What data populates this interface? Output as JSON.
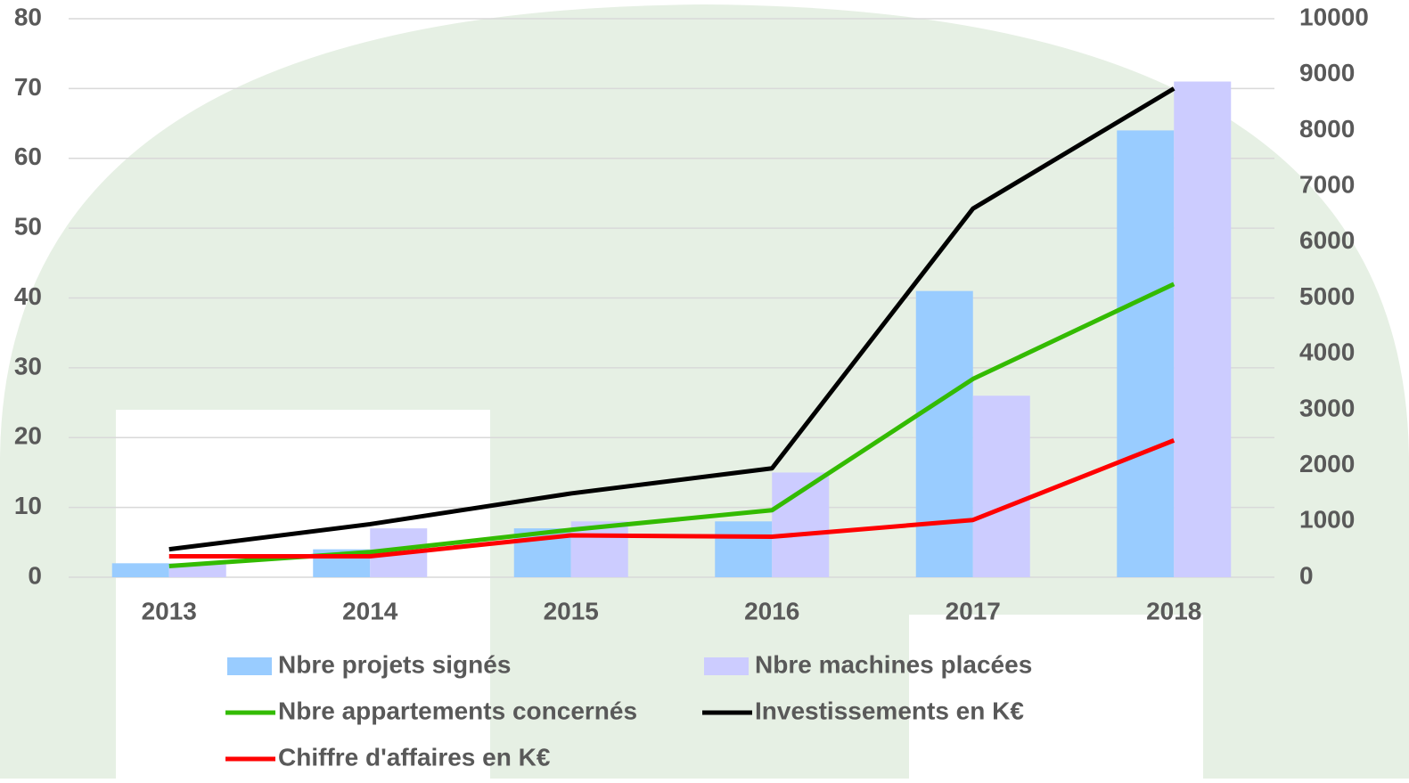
{
  "chart_data": {
    "type": "bar-line",
    "categories": [
      "2013",
      "2014",
      "2015",
      "2016",
      "2017",
      "2018"
    ],
    "ylim": [
      0,
      80
    ],
    "yticks": [
      0,
      10,
      20,
      30,
      40,
      50,
      60,
      70,
      80
    ],
    "y2lim": [
      0,
      10000
    ],
    "y2ticks": [
      0,
      1000,
      2000,
      3000,
      4000,
      5000,
      6000,
      7000,
      8000,
      9000,
      10000
    ],
    "grid": true,
    "series": [
      {
        "name": "Nbre projets signés",
        "type": "bar",
        "color": "#99ccff",
        "values": [
          2,
          4,
          7,
          8,
          41,
          64
        ]
      },
      {
        "name": "Nbre machines placées",
        "type": "bar",
        "color": "#ccccff",
        "values": [
          2,
          7,
          8,
          15,
          26,
          71
        ]
      },
      {
        "name": "Nbre appartements concernés",
        "type": "line",
        "axis": "y2",
        "color": "#33bb00",
        "values": [
          200,
          450,
          850,
          1200,
          3550,
          5250
        ]
      },
      {
        "name": "Investissements en K€",
        "type": "line",
        "axis": "y2",
        "color": "#000000",
        "values": [
          500,
          950,
          1500,
          1950,
          6600,
          8750
        ]
      },
      {
        "name": "Chiffre d'affaires en K€",
        "type": "line",
        "axis": "y2",
        "color": "#ff0000",
        "values": [
          375,
          375,
          750,
          725,
          1025,
          2450
        ]
      }
    ]
  }
}
